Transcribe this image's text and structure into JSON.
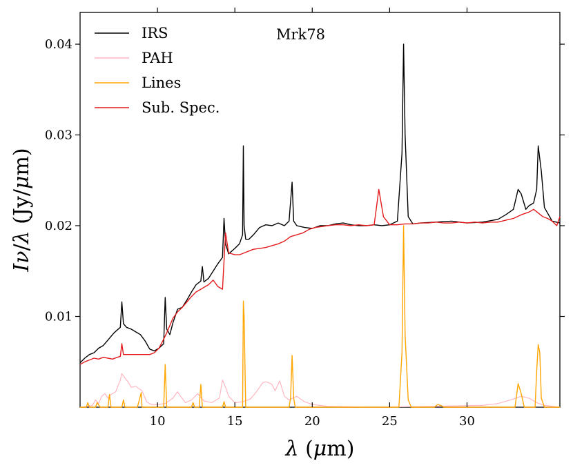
{
  "chart_data": {
    "type": "line",
    "title": "Mrk78",
    "xlabel": "λ (μm)",
    "ylabel": "Iν/λ (Jy/μm)",
    "xlim": [
      5.0,
      36.0
    ],
    "ylim": [
      0.0,
      0.0435
    ],
    "xticks": [
      10,
      15,
      20,
      25,
      30
    ],
    "yticks": [
      0.01,
      0.02,
      0.03,
      0.04
    ],
    "xtick_labels": [
      "10",
      "15",
      "20",
      "25",
      "30"
    ],
    "ytick_labels": [
      "0.01",
      "0.02",
      "0.03",
      "0.04"
    ],
    "legend_position": "top-left",
    "series": [
      {
        "name": "IRS",
        "color": "#000000",
        "x": [
          5.0,
          5.3,
          5.6,
          5.9,
          6.2,
          6.5,
          6.8,
          7.0,
          7.2,
          7.4,
          7.6,
          7.7,
          7.8,
          8.0,
          8.3,
          8.6,
          8.9,
          9.2,
          9.5,
          9.8,
          10.1,
          10.4,
          10.5,
          10.6,
          10.8,
          11.0,
          11.3,
          11.6,
          11.9,
          12.2,
          12.5,
          12.8,
          12.9,
          13.0,
          13.3,
          13.6,
          13.9,
          14.2,
          14.3,
          14.4,
          14.6,
          15.0,
          15.3,
          15.5,
          15.55,
          15.6,
          15.7,
          15.9,
          16.2,
          16.6,
          17.0,
          17.4,
          17.8,
          18.2,
          18.5,
          18.7,
          18.8,
          19.0,
          19.5,
          20.0,
          20.5,
          21.0,
          21.5,
          22.0,
          22.5,
          23.0,
          23.5,
          24.0,
          24.5,
          25.0,
          25.5,
          25.8,
          25.9,
          26.0,
          26.2,
          26.5,
          27.0,
          28.0,
          29.0,
          30.0,
          31.0,
          32.0,
          32.5,
          33.0,
          33.3,
          33.5,
          33.8,
          34.0,
          34.3,
          34.5,
          34.6,
          34.8,
          35.0,
          35.5,
          36.0
        ],
        "y": [
          0.0049,
          0.0054,
          0.0058,
          0.006,
          0.0065,
          0.0068,
          0.0074,
          0.0078,
          0.0082,
          0.0085,
          0.0088,
          0.0116,
          0.0092,
          0.0088,
          0.0086,
          0.0083,
          0.008,
          0.0073,
          0.0064,
          0.0062,
          0.0065,
          0.007,
          0.0121,
          0.0086,
          0.008,
          0.0093,
          0.0108,
          0.011,
          0.0118,
          0.0127,
          0.0135,
          0.0139,
          0.0155,
          0.0138,
          0.0142,
          0.015,
          0.0158,
          0.0165,
          0.0208,
          0.018,
          0.0169,
          0.0175,
          0.018,
          0.019,
          0.0288,
          0.02,
          0.0185,
          0.0185,
          0.019,
          0.0198,
          0.0201,
          0.02,
          0.0203,
          0.02,
          0.0205,
          0.0248,
          0.0205,
          0.02,
          0.0198,
          0.0197,
          0.02,
          0.02,
          0.0202,
          0.0203,
          0.0201,
          0.02,
          0.02,
          0.0201,
          0.02,
          0.0201,
          0.0205,
          0.028,
          0.04,
          0.03,
          0.021,
          0.0202,
          0.0203,
          0.0204,
          0.0205,
          0.0203,
          0.0204,
          0.0207,
          0.0212,
          0.0218,
          0.024,
          0.0235,
          0.0218,
          0.0222,
          0.0225,
          0.024,
          0.0288,
          0.026,
          0.022,
          0.0205,
          0.0203
        ]
      },
      {
        "name": "PAH",
        "color": "#ffb6c1",
        "x": [
          5.0,
          5.5,
          5.8,
          6.0,
          6.2,
          6.4,
          6.6,
          6.8,
          7.0,
          7.3,
          7.6,
          7.7,
          7.9,
          8.1,
          8.3,
          8.6,
          9.0,
          9.3,
          9.6,
          10.0,
          10.5,
          11.0,
          11.3,
          11.5,
          11.8,
          12.2,
          12.6,
          13.0,
          13.5,
          14.0,
          14.2,
          14.4,
          14.6,
          15.0,
          15.5,
          16.0,
          16.4,
          16.8,
          17.0,
          17.2,
          17.4,
          17.6,
          17.9,
          18.2,
          18.5,
          19.0,
          19.5,
          20.0,
          21.0,
          24.0,
          28.0,
          31.0,
          32.0,
          33.0,
          33.5,
          34.0,
          34.5,
          35.0,
          36.0
        ],
        "y": [
          0.0,
          0.0001,
          0.0002,
          0.0008,
          0.0004,
          0.0012,
          0.0015,
          0.001,
          0.0014,
          0.0017,
          0.003,
          0.0037,
          0.0032,
          0.0028,
          0.0022,
          0.0023,
          0.0018,
          0.0006,
          0.0003,
          0.0003,
          0.0004,
          0.001,
          0.0017,
          0.0012,
          0.0005,
          0.0008,
          0.0015,
          0.0007,
          0.0005,
          0.001,
          0.003,
          0.0022,
          0.0012,
          0.0005,
          0.0006,
          0.0009,
          0.0017,
          0.0027,
          0.0028,
          0.0027,
          0.0025,
          0.0018,
          0.0029,
          0.0012,
          0.0008,
          0.0012,
          0.0006,
          0.0003,
          0.0001,
          0.0,
          0.0001,
          0.0002,
          0.0004,
          0.0009,
          0.0012,
          0.001,
          0.0005,
          0.0002,
          0.0
        ]
      },
      {
        "name": "Lines",
        "color": "#ffa500",
        "x": [
          5.0,
          5.2,
          5.4,
          5.5,
          5.6,
          5.8,
          6.0,
          6.1,
          6.3,
          6.6,
          6.8,
          6.9,
          7.0,
          7.2,
          7.5,
          7.7,
          7.8,
          7.9,
          8.4,
          8.7,
          8.95,
          9.0,
          9.05,
          9.3,
          10.4,
          10.5,
          10.6,
          10.8,
          12.2,
          12.3,
          12.4,
          12.7,
          12.8,
          12.9,
          13.1,
          14.2,
          14.3,
          14.4,
          14.6,
          15.4,
          15.5,
          15.55,
          15.6,
          15.7,
          15.8,
          16.2,
          18.5,
          18.6,
          18.7,
          18.8,
          18.9,
          25.6,
          25.8,
          25.9,
          26.0,
          26.2,
          26.4,
          27.9,
          28.1,
          28.3,
          28.5,
          33.1,
          33.3,
          33.5,
          33.7,
          34.4,
          34.5,
          34.6,
          34.7,
          34.8,
          35.0,
          36.0
        ],
        "y": [
          0.0,
          0.0,
          0.0,
          0.0005,
          0.0,
          0.0,
          0.0,
          0.0005,
          0.0,
          0.0,
          0.0,
          0.0014,
          0.0,
          0.0,
          0.0,
          0.0,
          0.0008,
          0.0,
          0.0,
          0.0,
          0.0016,
          0.0,
          0.0,
          0.0,
          0.0,
          0.0047,
          0.0,
          0.0,
          0.0,
          0.0005,
          0.0,
          0.0,
          0.0025,
          0.0,
          0.0,
          0.0,
          0.0006,
          0.0,
          0.0,
          0.0,
          0.0,
          0.0117,
          0.01,
          0.0,
          0.0,
          0.0,
          0.0,
          0.001,
          0.0057,
          0.001,
          0.0,
          0.0,
          0.006,
          0.02,
          0.008,
          0.0008,
          0.0,
          0.0,
          0.0003,
          0.0002,
          0.0,
          0.0,
          0.0026,
          0.0015,
          0.0,
          0.0,
          0.004,
          0.0069,
          0.006,
          0.001,
          0.0,
          0.0
        ]
      },
      {
        "name": "Sub. Spec.",
        "color": "#e41a1c",
        "x": [
          5.0,
          5.3,
          5.6,
          5.9,
          6.2,
          6.5,
          6.8,
          7.1,
          7.4,
          7.6,
          7.7,
          7.8,
          8.0,
          8.3,
          8.6,
          8.9,
          9.2,
          9.5,
          9.8,
          10.1,
          10.4,
          10.6,
          10.8,
          11.0,
          11.3,
          11.6,
          11.9,
          12.2,
          12.5,
          12.8,
          13.0,
          13.3,
          13.6,
          13.9,
          14.2,
          14.4,
          14.6,
          15.0,
          15.3,
          15.6,
          15.9,
          16.2,
          16.6,
          17.0,
          17.4,
          17.8,
          18.2,
          18.6,
          19.0,
          19.4,
          19.8,
          20.2,
          20.6,
          21.0,
          21.5,
          22.0,
          22.5,
          23.0,
          23.5,
          24.0,
          24.3,
          24.6,
          25.0,
          25.5,
          26.0,
          26.5,
          27.0,
          27.5,
          28.0,
          28.5,
          29.0,
          29.5,
          30.0,
          30.5,
          31.0,
          31.5,
          32.0,
          32.5,
          33.0,
          33.5,
          34.0,
          34.3,
          34.6,
          34.9,
          35.2,
          35.5,
          35.8,
          36.0
        ],
        "y": [
          0.0047,
          0.005,
          0.0052,
          0.0054,
          0.0053,
          0.0055,
          0.0054,
          0.0053,
          0.0055,
          0.0056,
          0.007,
          0.0058,
          0.0058,
          0.0058,
          0.0058,
          0.0058,
          0.0058,
          0.0058,
          0.006,
          0.0065,
          0.0075,
          0.0082,
          0.009,
          0.0098,
          0.0105,
          0.011,
          0.0116,
          0.0122,
          0.0127,
          0.013,
          0.0132,
          0.0135,
          0.014,
          0.0133,
          0.013,
          0.0192,
          0.017,
          0.0168,
          0.0168,
          0.017,
          0.0172,
          0.0174,
          0.0175,
          0.0176,
          0.0178,
          0.018,
          0.0183,
          0.0188,
          0.019,
          0.0192,
          0.0196,
          0.0198,
          0.0199,
          0.02,
          0.0201,
          0.0201,
          0.02,
          0.0201,
          0.02,
          0.0201,
          0.024,
          0.021,
          0.0201,
          0.0201,
          0.0202,
          0.0202,
          0.0203,
          0.0203,
          0.0204,
          0.0203,
          0.0203,
          0.0204,
          0.0203,
          0.0204,
          0.0203,
          0.0204,
          0.0204,
          0.0206,
          0.0208,
          0.0212,
          0.0215,
          0.0218,
          0.0214,
          0.021,
          0.0208,
          0.0205,
          0.02,
          0.021
        ]
      }
    ]
  }
}
